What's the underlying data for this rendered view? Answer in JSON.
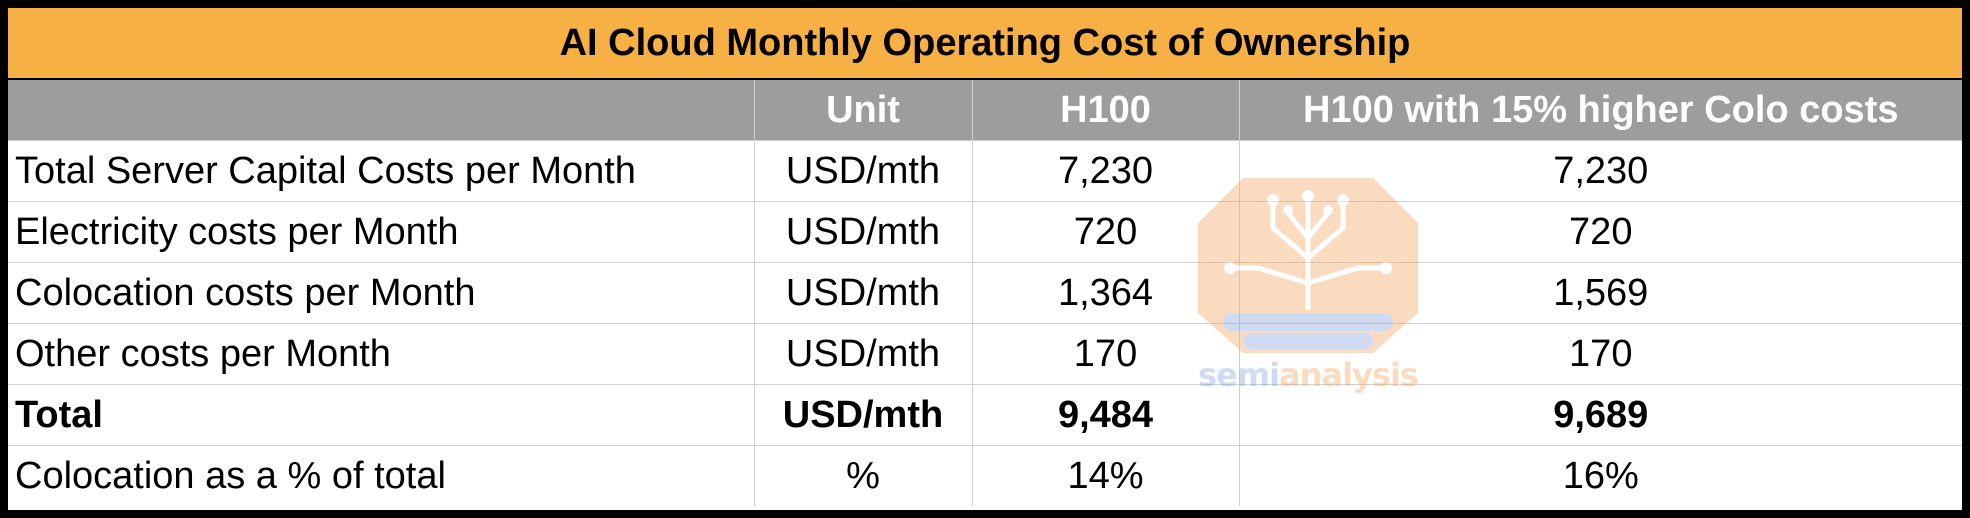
{
  "chart_data": {
    "type": "table",
    "title": "AI Cloud Monthly Operating Cost of Ownership",
    "columns": [
      "",
      "Unit",
      "H100",
      "H100 with 15% higher Colo costs"
    ],
    "rows": [
      {
        "label": "Total Server Capital Costs per Month",
        "unit": "USD/mth",
        "h100": "7,230",
        "h100_colo": "7,230",
        "bold": false
      },
      {
        "label": "Electricity costs per Month",
        "unit": "USD/mth",
        "h100": "720",
        "h100_colo": "720",
        "bold": false
      },
      {
        "label": "Colocation costs per Month",
        "unit": "USD/mth",
        "h100": "1,364",
        "h100_colo": "1,569",
        "bold": false
      },
      {
        "label": "Other costs per Month",
        "unit": "USD/mth",
        "h100": "170",
        "h100_colo": "170",
        "bold": false
      },
      {
        "label": "Total",
        "unit": "USD/mth",
        "h100": "9,484",
        "h100_colo": "9,689",
        "bold": true
      },
      {
        "label": "Colocation as a % of total",
        "unit": "%",
        "h100": "14%",
        "h100_colo": "16%",
        "bold": false
      }
    ]
  },
  "watermark": {
    "part1": "semi",
    "part2": "analysis",
    "icon": "circuit-bulb-logo-icon",
    "colors": {
      "blue": "#7fa3e0",
      "orange": "#f3a35d"
    }
  },
  "colors": {
    "title_bg": "#f6b043",
    "header_bg": "#9d9d9d",
    "header_text": "#ffffff",
    "grid": "#d0d0d0",
    "frame": "#000000"
  }
}
